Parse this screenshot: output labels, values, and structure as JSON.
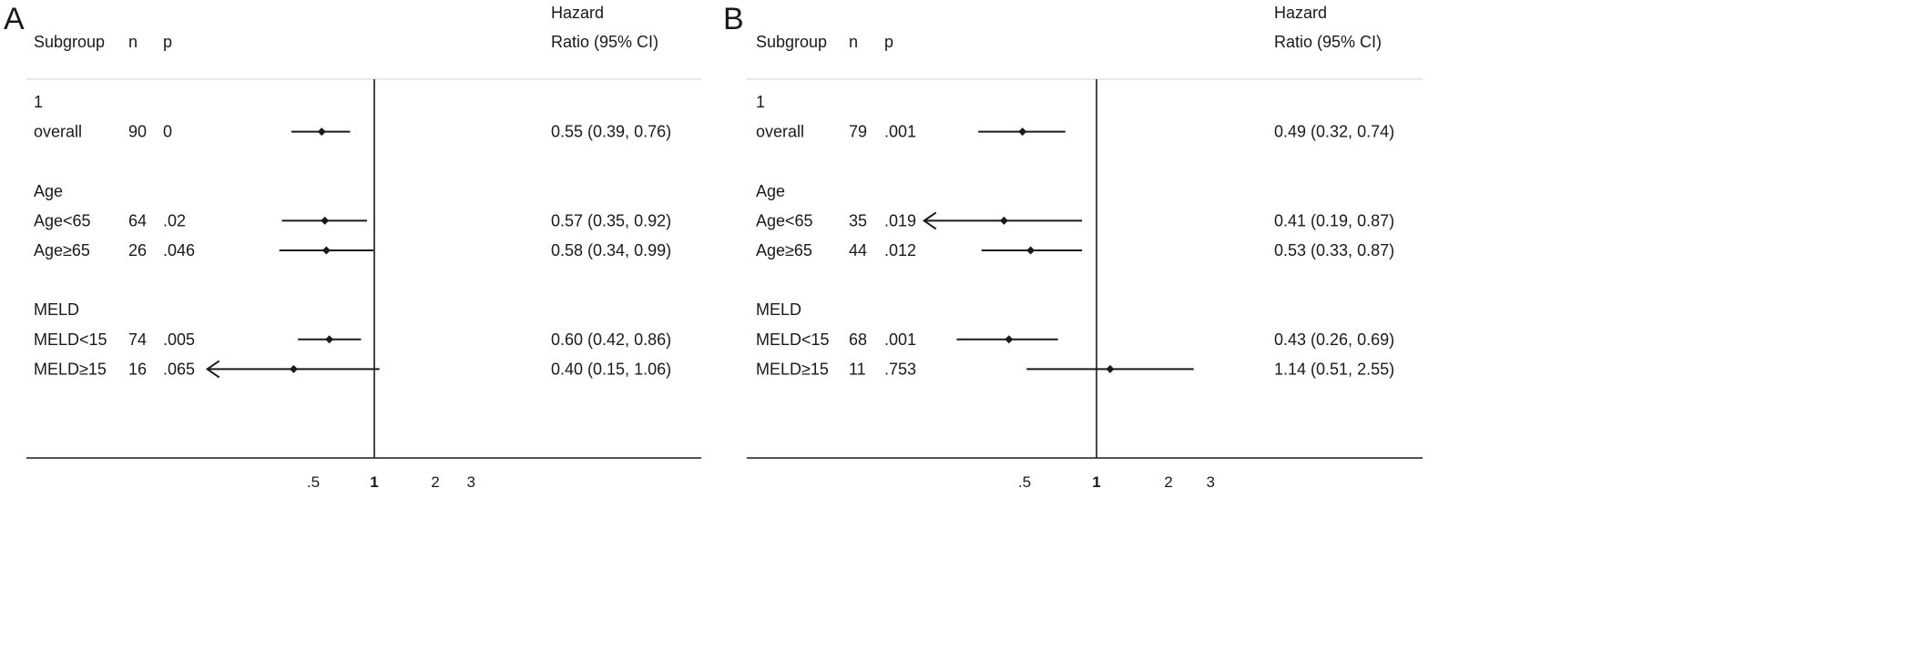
{
  "chart_data": [
    {
      "type": "forest",
      "panel_label": "A",
      "headers": {
        "subgroup": "Subgroup",
        "n": "n",
        "p": "p",
        "hr_line1": "Hazard",
        "hr_line2": "Ratio (95% CI)"
      },
      "x_scale": "log",
      "reference_line": 1,
      "ticks": [
        {
          "value": 0.5,
          "label": ".5"
        },
        {
          "value": 1,
          "label": "1",
          "bold": true
        },
        {
          "value": 2,
          "label": "2"
        },
        {
          "value": 3,
          "label": "3"
        }
      ],
      "rows": [
        {
          "kind": "header",
          "label": "1"
        },
        {
          "kind": "data",
          "label": "overall",
          "n": "90",
          "p": "0",
          "hr": 0.55,
          "lo": 0.39,
          "hi": 0.76,
          "text": "0.55 (0.39, 0.76)"
        },
        {
          "kind": "spacer"
        },
        {
          "kind": "header",
          "label": "Age"
        },
        {
          "kind": "data",
          "label": "Age<65",
          "n": "64",
          "p": ".02",
          "hr": 0.57,
          "lo": 0.35,
          "hi": 0.92,
          "text": "0.57 (0.35, 0.92)"
        },
        {
          "kind": "data",
          "label": "Age≥65",
          "n": "26",
          "p": ".046",
          "hr": 0.58,
          "lo": 0.34,
          "hi": 0.99,
          "text": "0.58 (0.34, 0.99)"
        },
        {
          "kind": "spacer"
        },
        {
          "kind": "header",
          "label": "MELD"
        },
        {
          "kind": "data",
          "label": "MELD<15",
          "n": "74",
          "p": ".005",
          "hr": 0.6,
          "lo": 0.42,
          "hi": 0.86,
          "text": "0.60 (0.42, 0.86)"
        },
        {
          "kind": "data",
          "label": "MELD≥15",
          "n": "16",
          "p": ".065",
          "hr": 0.4,
          "lo": 0.15,
          "hi": 1.06,
          "text": "0.40 (0.15, 1.06)",
          "lower_truncated": true
        }
      ]
    },
    {
      "type": "forest",
      "panel_label": "B",
      "headers": {
        "subgroup": "Subgroup",
        "n": "n",
        "p": "p",
        "hr_line1": "Hazard",
        "hr_line2": "Ratio (95% CI)"
      },
      "x_scale": "log",
      "reference_line": 1,
      "ticks": [
        {
          "value": 0.5,
          "label": ".5"
        },
        {
          "value": 1,
          "label": "1",
          "bold": true
        },
        {
          "value": 2,
          "label": "2"
        },
        {
          "value": 3,
          "label": "3"
        }
      ],
      "rows": [
        {
          "kind": "header",
          "label": "1"
        },
        {
          "kind": "data",
          "label": "overall",
          "n": "79",
          "p": ".001",
          "hr": 0.49,
          "lo": 0.32,
          "hi": 0.74,
          "text": "0.49 (0.32, 0.74)"
        },
        {
          "kind": "spacer"
        },
        {
          "kind": "header",
          "label": "Age"
        },
        {
          "kind": "data",
          "label": "Age<65",
          "n": "35",
          "p": ".019",
          "hr": 0.41,
          "lo": 0.19,
          "hi": 0.87,
          "text": "0.41 (0.19, 0.87)",
          "lower_truncated": true
        },
        {
          "kind": "data",
          "label": "Age≥65",
          "n": "44",
          "p": ".012",
          "hr": 0.53,
          "lo": 0.33,
          "hi": 0.87,
          "text": "0.53 (0.33, 0.87)"
        },
        {
          "kind": "spacer"
        },
        {
          "kind": "header",
          "label": "MELD"
        },
        {
          "kind": "data",
          "label": "MELD<15",
          "n": "68",
          "p": ".001",
          "hr": 0.43,
          "lo": 0.26,
          "hi": 0.69,
          "text": "0.43 (0.26, 0.69)"
        },
        {
          "kind": "data",
          "label": "MELD≥15",
          "n": "11",
          "p": ".753",
          "hr": 1.14,
          "lo": 0.51,
          "hi": 2.55,
          "text": "1.14 (0.51, 2.55)"
        }
      ]
    }
  ]
}
